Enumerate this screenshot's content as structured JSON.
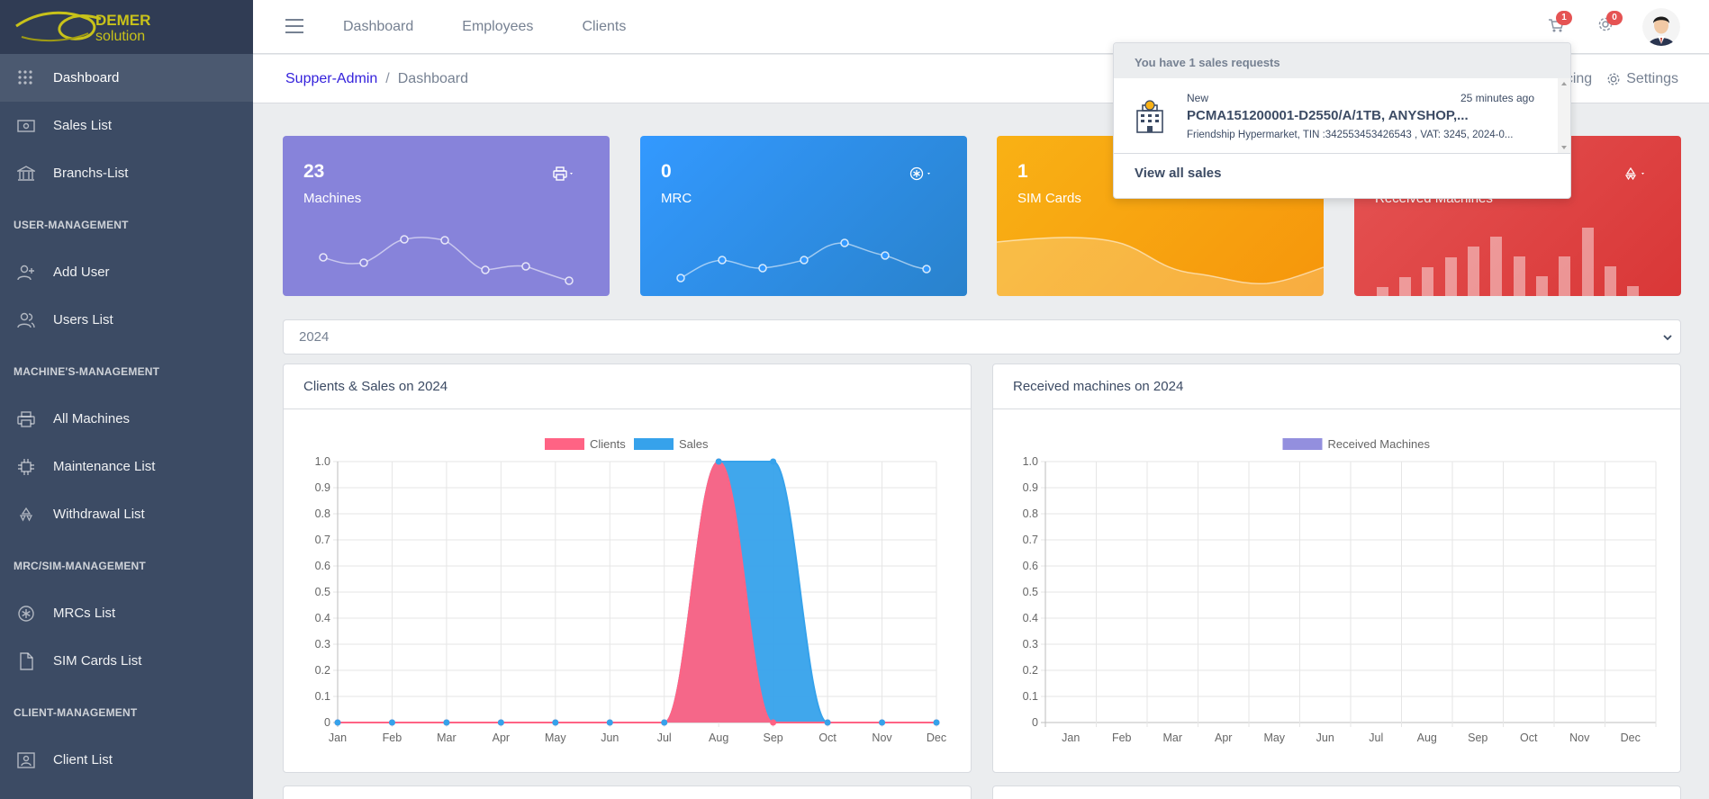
{
  "brand": {
    "line1": "DEMER",
    "line2": "solution"
  },
  "sidebar": {
    "items_top": [
      {
        "label": "Dashboard",
        "icon": "grid-icon"
      },
      {
        "label": "Sales List",
        "icon": "cash-icon"
      },
      {
        "label": "Branchs-List",
        "icon": "bank-icon"
      }
    ],
    "sections": [
      {
        "title": "USER-MANAGEMENT",
        "items": [
          {
            "label": "Add User",
            "icon": "user-plus-icon"
          },
          {
            "label": "Users List",
            "icon": "users-icon"
          }
        ]
      },
      {
        "title": "MACHINE'S-MANAGEMENT",
        "items": [
          {
            "label": "All Machines",
            "icon": "printer-icon"
          },
          {
            "label": "Maintenance List",
            "icon": "chip-icon"
          },
          {
            "label": "Withdrawal List",
            "icon": "recycle-icon"
          }
        ]
      },
      {
        "title": "MRC/SIM-MANAGEMENT",
        "items": [
          {
            "label": "MRCs List",
            "icon": "asterisk-icon"
          },
          {
            "label": "SIM Cards List",
            "icon": "file-icon"
          }
        ]
      },
      {
        "title": "CLIENT-MANAGEMENT",
        "items": [
          {
            "label": "Client List",
            "icon": "contact-icon"
          }
        ]
      }
    ]
  },
  "header": {
    "nav": [
      "Dashboard",
      "Employees",
      "Clients"
    ],
    "cart_badge": "1",
    "settings_badge": "0"
  },
  "breadcrumb": {
    "root": "Supper-Admin",
    "current": "Dashboard"
  },
  "subheader": {
    "partial_link": "cing",
    "settings_label": "Settings"
  },
  "widgets": [
    {
      "value": "23",
      "label": "Machines",
      "color": "#8783da"
    },
    {
      "value": "0",
      "label": "MRC",
      "color": "#3399ff"
    },
    {
      "value": "1",
      "label": "SIM Cards",
      "color": "#f9b115"
    },
    {
      "value": "",
      "label": "Received Machines",
      "color": "#e55353"
    }
  ],
  "year_select": {
    "value": "2024"
  },
  "cards": {
    "left_title": "Clients & Sales on 2024",
    "right_title": "Received machines on 2024"
  },
  "dropdown": {
    "header": "You have 1 sales requests",
    "item_status": "New",
    "item_time": "25 minutes ago",
    "item_title": "PCMA151200001-D2550/A/1TB, ANYSHOP,...",
    "item_subtitle": "Friendship Hypermarket, TIN :342553453426543 , VAT: 3245, 2024-0...",
    "footer": "View all sales"
  },
  "chart_data": [
    {
      "type": "area",
      "title": "Clients & Sales on 2024",
      "categories": [
        "Jan",
        "Feb",
        "Mar",
        "Apr",
        "May",
        "Jun",
        "Jul",
        "Aug",
        "Sep",
        "Oct",
        "Nov",
        "Dec"
      ],
      "ylim": [
        0,
        1
      ],
      "yticks": [
        "0",
        "0.1",
        "0.2",
        "0.3",
        "0.4",
        "0.5",
        "0.6",
        "0.7",
        "0.8",
        "0.9",
        "1.0"
      ],
      "legend": "top",
      "grid": true,
      "series": [
        {
          "name": "Clients",
          "color": "#ff6384",
          "values": [
            0,
            0,
            0,
            0,
            0,
            0,
            0,
            1,
            0,
            0,
            0,
            0
          ]
        },
        {
          "name": "Sales",
          "color": "#36a2eb",
          "values": [
            0,
            0,
            0,
            0,
            0,
            0,
            0,
            1,
            1,
            0,
            0,
            0
          ]
        }
      ]
    },
    {
      "type": "bar",
      "title": "Received machines on 2024",
      "categories": [
        "Jan",
        "Feb",
        "Mar",
        "Apr",
        "May",
        "Jun",
        "Jul",
        "Aug",
        "Sep",
        "Oct",
        "Nov",
        "Dec"
      ],
      "ylim": [
        0,
        1
      ],
      "yticks": [
        "0",
        "0.1",
        "0.2",
        "0.3",
        "0.4",
        "0.5",
        "0.6",
        "0.7",
        "0.8",
        "0.9",
        "1.0"
      ],
      "legend": "top",
      "grid": true,
      "series": [
        {
          "name": "Received Machines",
          "color": "#8783da",
          "values": [
            0,
            0,
            0,
            0,
            0,
            0,
            0,
            0,
            0,
            0,
            0,
            0
          ]
        }
      ]
    }
  ]
}
